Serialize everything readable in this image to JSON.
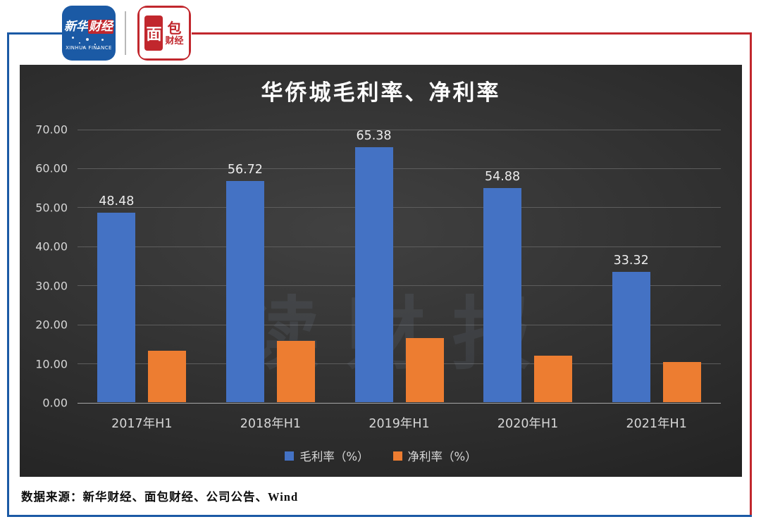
{
  "header": {
    "xinhua_logo": {
      "cn_part1": "新华",
      "cn_part2": "财经",
      "en": "XINHUA FINANCE"
    },
    "mianbao_logo": {
      "c1": "面",
      "c2": "包",
      "c3": "财经"
    }
  },
  "chart_data": {
    "type": "bar",
    "title": "华侨城毛利率、净利率",
    "categories": [
      "2017年H1",
      "2018年H1",
      "2019年H1",
      "2020年H1",
      "2021年H1"
    ],
    "series": [
      {
        "name": "毛利率（%）",
        "color": "#4472c4",
        "values": [
          48.48,
          56.72,
          65.38,
          54.88,
          33.32
        ],
        "data_labels": [
          "48.48",
          "56.72",
          "65.38",
          "54.88",
          "33.32"
        ],
        "show_labels": true
      },
      {
        "name": "净利率（%）",
        "color": "#ed7d31",
        "values": [
          13.1,
          15.7,
          16.5,
          12.0,
          10.3
        ],
        "show_labels": false
      }
    ],
    "ylim": [
      0,
      70
    ],
    "yticks": [
      0,
      10,
      20,
      30,
      40,
      50,
      60,
      70
    ],
    "ytick_labels": [
      "0.00",
      "10.00",
      "20.00",
      "30.00",
      "40.00",
      "50.00",
      "60.00",
      "70.00"
    ],
    "grid": true,
    "legend_position": "bottom"
  },
  "watermark": "读财报",
  "source": "数据来源：新华财经、面包财经、公司公告、Wind",
  "colors": {
    "frame_blue": "#1b5aa5",
    "frame_red": "#c1272d",
    "bar_blue": "#4472c4",
    "bar_orange": "#ed7d31"
  }
}
